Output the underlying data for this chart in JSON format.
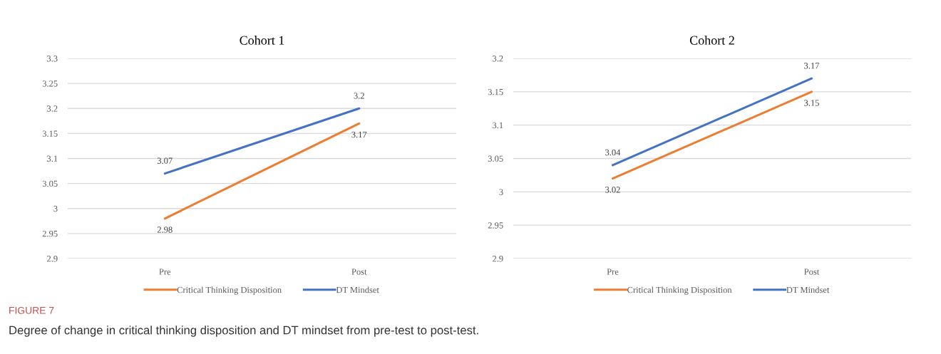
{
  "chart_data": [
    {
      "type": "line",
      "title": "Cohort 1",
      "categories": [
        "Pre",
        "Post"
      ],
      "series": [
        {
          "name": "Critical Thinking Disposition",
          "color": "#ed7d31",
          "values": [
            2.98,
            3.17
          ]
        },
        {
          "name": "DT Mindset",
          "color": "#4472c4",
          "values": [
            3.07,
            3.2
          ]
        }
      ],
      "ylim": [
        2.9,
        3.3
      ],
      "yticks": [
        2.9,
        2.95,
        3,
        3.05,
        3.1,
        3.15,
        3.2,
        3.25,
        3.3
      ],
      "grid": "y",
      "legend": "bottom",
      "data_labels": true,
      "marker": "none",
      "line_style": "solid",
      "annotations": [
        "FIGURE 7",
        "Degree of change in critical thinking disposition and DT mindset from pre-test to post-test."
      ]
    },
    {
      "type": "line",
      "title": "Cohort 2",
      "categories": [
        "Pre",
        "Post"
      ],
      "series": [
        {
          "name": "Critical Thinking Disposition",
          "color": "#ed7d31",
          "values": [
            3.02,
            3.15
          ]
        },
        {
          "name": "DT Mindset",
          "color": "#4472c4",
          "values": [
            3.04,
            3.17
          ]
        }
      ],
      "ylim": [
        2.9,
        3.2
      ],
      "yticks": [
        2.9,
        2.95,
        3,
        3.05,
        3.1,
        3.15,
        3.2
      ],
      "grid": "y",
      "legend": "bottom",
      "data_labels": true,
      "marker": "none",
      "line_style": "solid"
    }
  ]
}
